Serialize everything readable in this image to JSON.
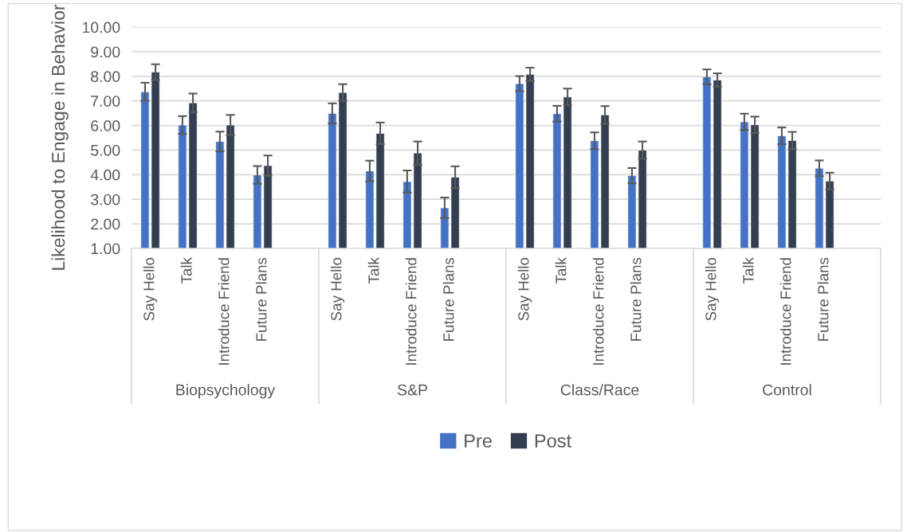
{
  "chart_data": {
    "type": "bar",
    "ylabel": "Likelihood to Engage in Behavior",
    "categories": [
      "Say Hello",
      "Talk",
      "Introduce Friend",
      "Future Plans",
      null,
      "Say Hello",
      "Talk",
      "Introduce Friend",
      "Future Plans",
      null,
      "Say Hello",
      "Talk",
      "Introduce Friend",
      "Future Plans",
      null,
      "Say Hello",
      "Talk",
      "Introduce Friend",
      "Future Plans",
      null
    ],
    "annotations": [
      "Biopsychology",
      "S&P",
      "Class/Race",
      "Control"
    ],
    "series": [
      {
        "name": "Pre",
        "color": "#4472c4",
        "values": [
          7.37,
          6.02,
          5.35,
          3.99,
          null,
          6.49,
          4.15,
          3.72,
          2.65,
          null,
          7.7,
          6.48,
          5.38,
          3.96,
          null,
          7.98,
          6.15,
          5.58,
          4.26,
          null
        ],
        "errors": [
          0.37,
          0.36,
          0.4,
          0.36,
          null,
          0.41,
          0.42,
          0.45,
          0.42,
          null,
          0.31,
          0.32,
          0.34,
          0.31,
          null,
          0.3,
          0.33,
          0.34,
          0.32,
          null
        ]
      },
      {
        "name": "Post",
        "color": "#333f50",
        "values": [
          8.17,
          6.92,
          6.02,
          4.37,
          null,
          7.34,
          5.68,
          4.88,
          3.9,
          null,
          8.08,
          7.16,
          6.43,
          5.0,
          null,
          7.85,
          6.03,
          5.39,
          3.74,
          null
        ],
        "errors": [
          0.32,
          0.38,
          0.41,
          0.41,
          null,
          0.34,
          0.44,
          0.47,
          0.44,
          null,
          0.27,
          0.34,
          0.36,
          0.35,
          null,
          0.27,
          0.33,
          0.35,
          0.34,
          null
        ]
      }
    ],
    "ylim": [
      1,
      10
    ],
    "yticks": [
      {
        "value": 1,
        "label": "1.00"
      },
      {
        "value": 2,
        "label": "2.00"
      },
      {
        "value": 3,
        "label": "3.00"
      },
      {
        "value": 4,
        "label": "4.00"
      },
      {
        "value": 5,
        "label": "5.00"
      },
      {
        "value": 6,
        "label": "6.00"
      },
      {
        "value": 7,
        "label": "7.00"
      },
      {
        "value": 8,
        "label": "8.00"
      },
      {
        "value": 9,
        "label": "9.00"
      },
      {
        "value": 10,
        "label": "10.00"
      }
    ],
    "grid": "y",
    "legend": "bottom"
  }
}
